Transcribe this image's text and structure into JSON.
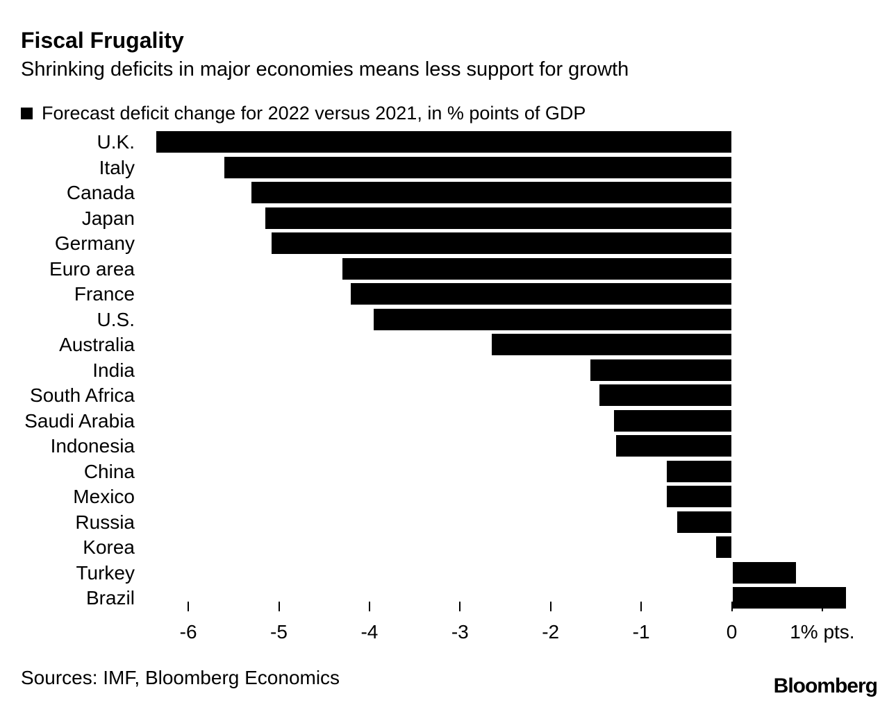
{
  "header": {
    "title": "Fiscal Frugality",
    "subtitle": "Shrinking deficits in major economies means less support for growth"
  },
  "legend": {
    "marker": "black-square",
    "label": "Forecast deficit change for 2022 versus 2021, in % points of GDP"
  },
  "chart_data": {
    "type": "bar",
    "orientation": "horizontal",
    "title": "Fiscal Frugality",
    "subtitle": "Shrinking deficits in major economies means less support for growth",
    "series_label": "Forecast deficit change for 2022 versus 2021, in % points of GDP",
    "categories": [
      "U.K.",
      "Italy",
      "Canada",
      "Japan",
      "Germany",
      "Euro area",
      "France",
      "U.S.",
      "Australia",
      "India",
      "South Africa",
      "Saudi Arabia",
      "Indonesia",
      "China",
      "Mexico",
      "Russia",
      "Korea",
      "Turkey",
      "Brazil"
    ],
    "values": [
      -6.35,
      -5.6,
      -5.3,
      -5.15,
      -5.08,
      -4.3,
      -4.21,
      -3.95,
      -2.65,
      -1.56,
      -1.46,
      -1.3,
      -1.28,
      -0.72,
      -0.72,
      -0.6,
      -0.17,
      0.7,
      1.25
    ],
    "unit": "% points of GDP",
    "xlabel": "",
    "ylabel": "",
    "xlim": [
      -6.55,
      1.6
    ],
    "xticks": {
      "values": [
        -6,
        -5,
        -4,
        -3,
        -2,
        -1,
        0,
        1
      ],
      "labels": [
        "-6",
        "-5",
        "-4",
        "-3",
        "-2",
        "-1",
        "0",
        "1% pts."
      ]
    },
    "bar_color": "#000000",
    "grid": false,
    "legend_position": "top-left"
  },
  "footer": {
    "sources": "Sources: IMF, Bloomberg Economics",
    "logo": "Bloomberg"
  },
  "colors": {
    "background": "#ffffff",
    "text": "#000000",
    "bar": "#000000"
  }
}
